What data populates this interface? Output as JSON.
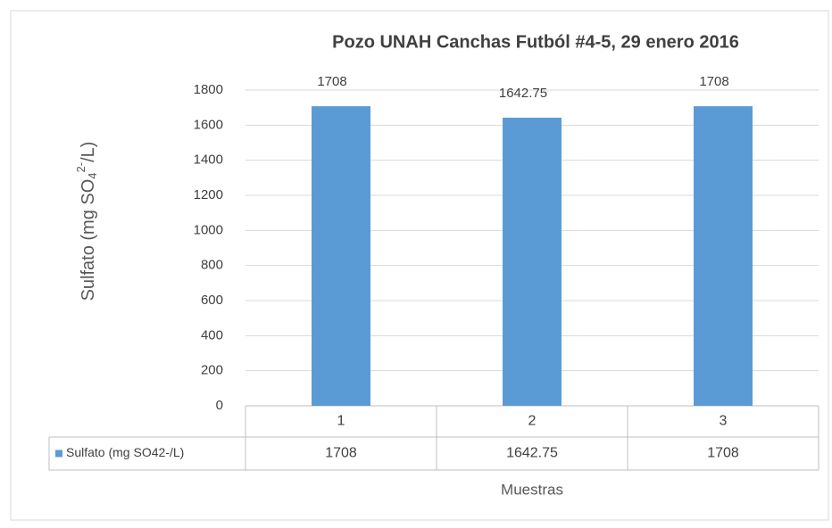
{
  "chart_data": {
    "type": "bar",
    "title": "Pozo UNAH Canchas Futból #4-5, 29 enero 2016",
    "ylabel_parts": [
      "Sulfato (mg SO",
      "4",
      "2-",
      "/L)"
    ],
    "xlabel": "Muestras",
    "categories": [
      "1",
      "2",
      "3"
    ],
    "series": [
      {
        "name": "Sulfato (mg SO42-/L)",
        "color": "#5b9bd5",
        "values": [
          1708,
          1642.75,
          1708
        ]
      }
    ],
    "ylim": [
      0,
      1800
    ],
    "yticks": [
      0,
      200,
      400,
      600,
      800,
      1000,
      1200,
      1400,
      1600,
      1800
    ],
    "grid": true,
    "data_table": true
  }
}
